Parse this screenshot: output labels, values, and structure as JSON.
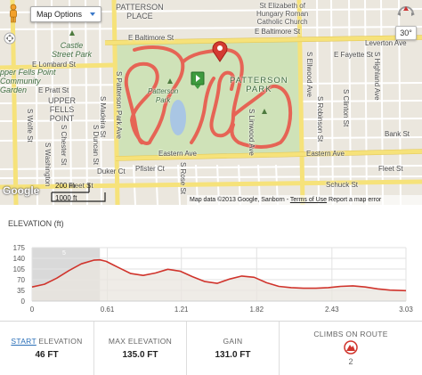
{
  "map": {
    "options_label": "Map Options",
    "zoom_3d_label": "30°",
    "google_logo": "Google",
    "scale_labels": [
      "200 m",
      "1000 ft"
    ],
    "attribution": {
      "prefix": "Map data ©2013 Google, Sanborn",
      "terms": "Terms of Use",
      "report": "Report a map error"
    },
    "streets": {
      "e_baltimore_left": "E Baltimore St",
      "e_baltimore_right": "E Baltimore St",
      "e_lombard": "E Lombard St",
      "e_pratt": "E Pratt St",
      "e_fayette": "E Fayette St",
      "leverton": "Leverton Ave",
      "eastern_ave": "Eastern Ave",
      "eastern_ave_left": "Eastern Ave",
      "fleet_right": "Fleet St",
      "fleet_left": "Fleet St",
      "bank": "Bank St",
      "duker": "Duker Ct",
      "pfister": "Pfister Ct",
      "schuck": "Schuck St",
      "s_patterson_park": "S Patterson Park Ave",
      "s_wolfe": "S Wolfe St",
      "s_washington": "S Washington",
      "s_duncan": "S Duncan St",
      "s_madeira": "S Madeira St",
      "s_chester": "S Chester St",
      "s_rose": "S Rose St",
      "s_linwood": "S Linwood Ave",
      "s_robinson": "S Robinson St",
      "s_clinton": "S Clinton St",
      "s_highland": "S Highland Ave",
      "s_ellwood": "S Ellwood Ave"
    },
    "places": {
      "patterson_place": "PATTERSON\nPLACE",
      "church": "St Elizabeth of\nHungary Roman\nCatholic Church",
      "castle_street_park": "Castle\nStreet Park",
      "fells_point_garden": "pper Fells Point\nCommunity\nGarden",
      "upper_fells_point": "UPPER\nFELLS\nPOINT",
      "patterson_park_label": "Patterson\nPark",
      "patterson_park_big": "PATTERSON\nPARK"
    },
    "route_color": "#e8574a",
    "park_color": "#cfe2b8"
  },
  "elevation": {
    "title": "ELEVATION (ft)",
    "marker_label": "5"
  },
  "chart_data": {
    "type": "area",
    "title": "ELEVATION (ft)",
    "xlabel": "",
    "ylabel": "",
    "x_ticks": [
      "0",
      "0.61",
      "1.21",
      "1.82",
      "2.43",
      "3.03"
    ],
    "x_tick_values": [
      0,
      0.61,
      1.21,
      1.82,
      2.43,
      3.03
    ],
    "y_ticks": [
      "0",
      "35",
      "70",
      "105",
      "140",
      "175"
    ],
    "y_tick_values": [
      0,
      35,
      70,
      105,
      140,
      175
    ],
    "xlim": [
      0,
      3.03
    ],
    "ylim": [
      0,
      175
    ],
    "grid": true,
    "series": [
      {
        "x": [
          0,
          0.1,
          0.2,
          0.3,
          0.4,
          0.5,
          0.55,
          0.6,
          0.7,
          0.8,
          0.9,
          1.0,
          1.1,
          1.2,
          1.3,
          1.4,
          1.5,
          1.6,
          1.7,
          1.8,
          1.9,
          2.0,
          2.1,
          2.2,
          2.3,
          2.4,
          2.5,
          2.6,
          2.7,
          2.8,
          2.9,
          3.03
        ],
        "y": [
          46,
          55,
          75,
          100,
          122,
          134,
          135,
          130,
          110,
          90,
          84,
          92,
          104,
          98,
          80,
          64,
          58,
          72,
          82,
          78,
          60,
          48,
          44,
          42,
          42,
          44,
          48,
          50,
          46,
          40,
          36,
          34
        ]
      }
    ],
    "highlight_range": [
      0,
      0.55
    ],
    "line_color": "#d0342c",
    "fill_color": "#e9e6df"
  },
  "stats": [
    {
      "label_highlight": "START",
      "label_rest": " ELEVATION",
      "value": "46 FT"
    },
    {
      "label_highlight": "",
      "label_rest": "MAX ELEVATION",
      "value": "135.0 FT"
    },
    {
      "label_highlight": "",
      "label_rest": "GAIN",
      "value": "131.0 FT"
    },
    {
      "label_highlight": "",
      "label_rest": "CLIMBS ON ROUTE",
      "value": "2"
    }
  ]
}
